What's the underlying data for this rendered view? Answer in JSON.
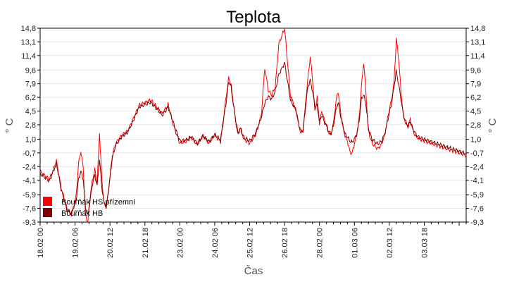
{
  "chart_data": {
    "type": "line",
    "title": "Teplota",
    "xlabel": "Čas",
    "ylabel": "° C",
    "ylim": [
      -9.3,
      14.8
    ],
    "yticks": [
      "14,8",
      "13,1",
      "11,4",
      "9,6",
      "7,9",
      "6,2",
      "4,5",
      "2,8",
      "1,0",
      "-0,7",
      "-2,4",
      "-4,1",
      "-5,9",
      "-7,6",
      "-9,3"
    ],
    "ytick_values": [
      14.8,
      13.1,
      11.4,
      9.6,
      7.9,
      6.2,
      4.5,
      2.8,
      1.0,
      -0.7,
      -2.4,
      -4.1,
      -5.9,
      -7.6,
      -9.3
    ],
    "xlim_hours": [
      0,
      366
    ],
    "xticks": [
      "18.02 00",
      "19.02 06",
      "20.02 12",
      "21.02 18",
      "23.02 00",
      "24.02 06",
      "25.02 12",
      "26.02 18",
      "28.02 00",
      "01.03 06",
      "02.03 12",
      "03.03 18"
    ],
    "grid": true,
    "legend_position": "bottom-left",
    "series": [
      {
        "name": "Bouřňák HS přízemní",
        "color": "#ff0000",
        "x": [
          0,
          8,
          14,
          18,
          23,
          27,
          31,
          33,
          35,
          37,
          39,
          41,
          43,
          45,
          47,
          49,
          51,
          53,
          55,
          57,
          59,
          62,
          65,
          70,
          75,
          80,
          85,
          95,
          105,
          110,
          115,
          120,
          125,
          130,
          135,
          140,
          145,
          150,
          155,
          160,
          162,
          164,
          166,
          168,
          170,
          172,
          175,
          180,
          185,
          190,
          193,
          196,
          199,
          202,
          205,
          210,
          215,
          220,
          222,
          224,
          226,
          228,
          230,
          232,
          234,
          236,
          238,
          240,
          242,
          244,
          246,
          248,
          250,
          252,
          254,
          256,
          258,
          260,
          262,
          264,
          266,
          268,
          270,
          272,
          274,
          276,
          278,
          280,
          282,
          285,
          290,
          293,
          296,
          299,
          302,
          304,
          306,
          308,
          310,
          312,
          314,
          316,
          318,
          320,
          322,
          324,
          326,
          328,
          330,
          332,
          334,
          336,
          338,
          340,
          342,
          344,
          346,
          348,
          350,
          352,
          354,
          356,
          358,
          360,
          362,
          364,
          366
        ],
        "y": [
          -3,
          -4,
          -1.7,
          -5,
          -7.6,
          -8.4,
          -6,
          -2,
          -0.5,
          -2.5,
          -8.5,
          -9.3,
          -6,
          -4,
          -2.8,
          -4.5,
          1.8,
          -4,
          -7,
          -7.5,
          -5,
          -1,
          0.5,
          1.5,
          2,
          3.5,
          5.2,
          5.9,
          4.2,
          5.3,
          2.5,
          0.5,
          0.7,
          1.2,
          0.3,
          1.5,
          0.5,
          1.5,
          0.7,
          6.5,
          8.6,
          7.8,
          5.5,
          3.2,
          1.5,
          2.5,
          1,
          0.5,
          1.5,
          4,
          9.9,
          7,
          6.5,
          7.5,
          12.8,
          14.8,
          6.5,
          4.5,
          2.8,
          1.8,
          2,
          5.5,
          8.5,
          11.2,
          8.5,
          4.5,
          6.2,
          3,
          4.5,
          3.5,
          2.8,
          1.8,
          1.6,
          3,
          5.5,
          7,
          4.5,
          2.5,
          1.4,
          0.8,
          -0.5,
          -0.8,
          0.5,
          1.5,
          3.5,
          7.5,
          10.6,
          6.5,
          2,
          0.5,
          -0.2,
          0.3,
          1.5,
          4,
          6,
          8,
          13.5,
          11,
          7,
          4,
          3,
          2.5,
          3.5,
          2.2,
          1.5,
          1.2,
          1,
          0.9,
          0.8,
          0.7,
          0.6,
          0.5,
          0.4,
          0.3,
          0.2,
          0.1,
          0,
          -0.1,
          -0.2,
          -0.3,
          -0.4,
          -0.5,
          -0.6,
          -0.7,
          -0.8,
          -0.9,
          -1
        ]
      },
      {
        "name": "Bouřňák HB",
        "color": "#800000",
        "x": [
          0,
          8,
          14,
          18,
          23,
          27,
          31,
          33,
          35,
          37,
          39,
          41,
          43,
          45,
          47,
          49,
          51,
          53,
          55,
          57,
          59,
          62,
          65,
          70,
          75,
          80,
          85,
          95,
          105,
          110,
          115,
          120,
          125,
          130,
          135,
          140,
          145,
          150,
          155,
          160,
          162,
          164,
          166,
          168,
          170,
          172,
          175,
          180,
          185,
          190,
          193,
          196,
          199,
          202,
          205,
          210,
          215,
          220,
          222,
          224,
          226,
          228,
          230,
          232,
          234,
          236,
          238,
          240,
          242,
          244,
          246,
          248,
          250,
          252,
          254,
          256,
          258,
          260,
          262,
          264,
          266,
          268,
          270,
          272,
          274,
          276,
          278,
          280,
          282,
          285,
          290,
          293,
          296,
          299,
          302,
          304,
          306,
          308,
          310,
          312,
          314,
          316,
          318,
          320,
          322,
          324,
          326,
          328,
          330,
          332,
          334,
          336,
          338,
          340,
          342,
          344,
          346,
          348,
          350,
          352,
          354,
          356,
          358,
          360,
          362,
          364,
          366
        ],
        "y": [
          -3.3,
          -4.2,
          -2,
          -5.2,
          -7.8,
          -8.2,
          -6.5,
          -4,
          -3,
          -4,
          -7.5,
          -8.5,
          -6.5,
          -4.5,
          -3.5,
          -4.8,
          -1.5,
          -5,
          -7,
          -7.3,
          -5,
          -1.3,
          0.3,
          1.3,
          1.8,
          3.3,
          5,
          5.6,
          4,
          5,
          2.8,
          0.8,
          0.9,
          1.3,
          0.5,
          1.4,
          0.7,
          1.6,
          0.9,
          5.8,
          8.2,
          7.5,
          5.3,
          3.4,
          1.8,
          2.3,
          1.2,
          0.8,
          1.7,
          3.7,
          5.5,
          6.3,
          6,
          7,
          9,
          10.5,
          5.9,
          4.5,
          3,
          2,
          2.2,
          5,
          7.5,
          8.3,
          7,
          5,
          5.2,
          3.2,
          4,
          3.2,
          2.6,
          1.9,
          1.7,
          2.7,
          4.5,
          5.6,
          4,
          2.8,
          1.6,
          1.3,
          0.8,
          0.6,
          1,
          1.7,
          3.2,
          6,
          6.5,
          5.2,
          2.4,
          1,
          0.4,
          0.7,
          1.6,
          3.6,
          5.5,
          7.5,
          9.5,
          7.8,
          6,
          4,
          3.2,
          2.7,
          3.2,
          2.4,
          1.8,
          1.4,
          1.2,
          1.1,
          1,
          0.9,
          0.8,
          0.7,
          0.6,
          0.5,
          0.4,
          0.3,
          0.2,
          0.1,
          0,
          -0.1,
          -0.2,
          -0.3,
          -0.4,
          -0.5,
          -0.6,
          -0.7,
          -0.8
        ]
      }
    ]
  }
}
